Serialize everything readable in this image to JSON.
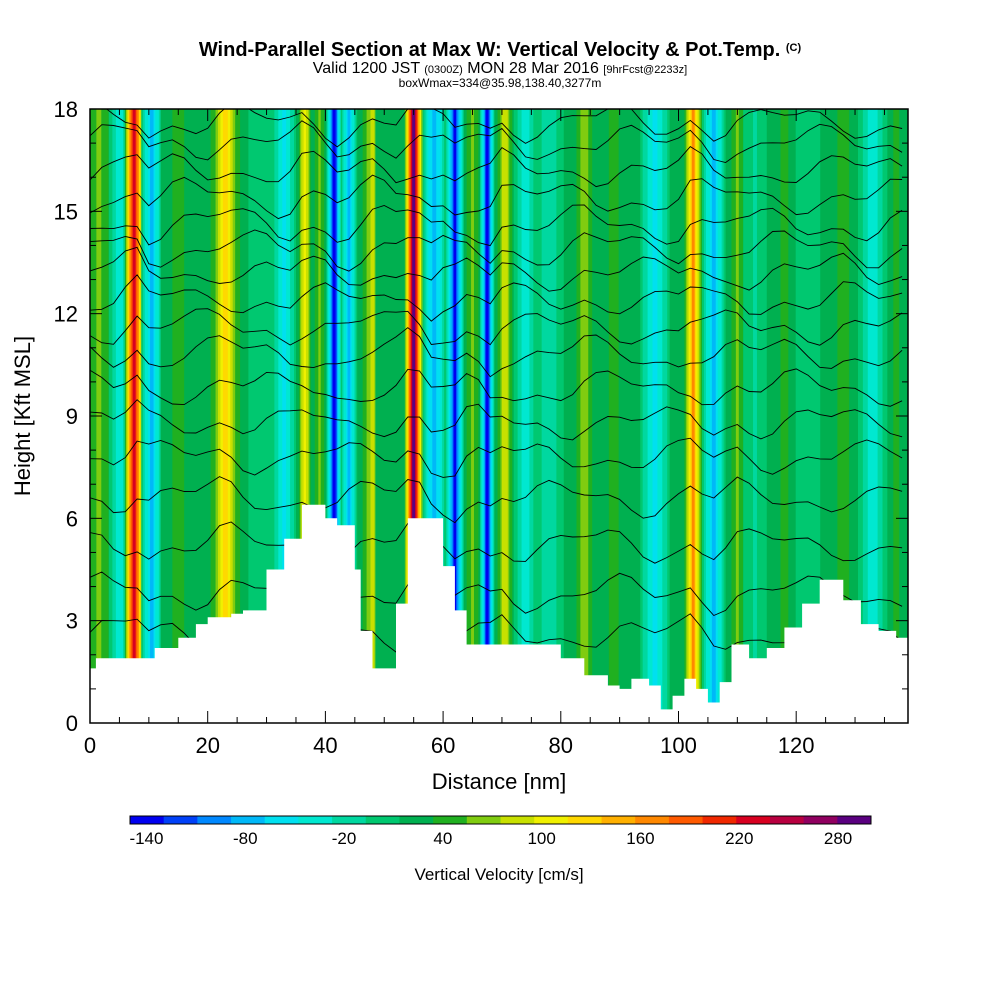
{
  "title": {
    "main": "Wind-Parallel Section at Max W: Vertical Velocity & Pot.Temp.",
    "copyright": "(C)",
    "valid_prefix": "Valid 1200 JST",
    "valid_utc": "(0300Z)",
    "valid_date": "MON 28 Mar 2016",
    "forecast": "[9hrFcst@2233z]",
    "boxmax": "boxWmax=334@35.98,138.40,3277m"
  },
  "chart_data": {
    "type": "heatmap",
    "title": "Wind-Parallel Section at Max W: Vertical Velocity & Pot.Temp.",
    "xlabel": "Distance [nm]",
    "ylabel": "Height [Kft MSL]",
    "xlim": [
      0,
      139
    ],
    "ylim": [
      0,
      18
    ],
    "x_ticks": [
      0,
      20,
      40,
      60,
      80,
      100,
      120
    ],
    "y_ticks": [
      0,
      3,
      6,
      9,
      12,
      15,
      18
    ],
    "colorbar": {
      "label": "Vertical Velocity [cm/s]",
      "tick_labels": [
        "-140",
        "-80",
        "-20",
        "40",
        "100",
        "160",
        "220",
        "280"
      ],
      "tick_values": [
        -140,
        -80,
        -20,
        40,
        100,
        160,
        220,
        280
      ],
      "min": -150,
      "max": 300,
      "colors": [
        "#0000f0",
        "#0040f8",
        "#0088ff",
        "#00b8f8",
        "#00e0f0",
        "#00e8d0",
        "#00d8a0",
        "#00c870",
        "#00b050",
        "#20b020",
        "#80cc10",
        "#c8e000",
        "#f0f000",
        "#ffd800",
        "#ffb000",
        "#ff8800",
        "#ff5a00",
        "#f02800",
        "#d80020",
        "#b80040",
        "#900060",
        "#5a0080"
      ]
    },
    "terrain": {
      "x": [
        0,
        1,
        10,
        11,
        15,
        18,
        20,
        24,
        26,
        30,
        33,
        36,
        38,
        40,
        42,
        45,
        46,
        48,
        52,
        54,
        57,
        60,
        62,
        64,
        66,
        70,
        74,
        78,
        80,
        84,
        88,
        90,
        92,
        95,
        97,
        99,
        101,
        103,
        105,
        107,
        109,
        112,
        115,
        118,
        121,
        124,
        126,
        128,
        131,
        134,
        137,
        139
      ],
      "height": [
        1.6,
        1.9,
        1.9,
        2.2,
        2.5,
        2.9,
        3.1,
        3.2,
        3.3,
        4.5,
        5.4,
        6.4,
        6.4,
        6.0,
        5.8,
        4.5,
        2.7,
        1.6,
        3.5,
        6.0,
        6.0,
        4.6,
        3.3,
        2.3,
        2.3,
        2.3,
        2.3,
        2.3,
        1.9,
        1.4,
        1.1,
        1.0,
        1.3,
        1.1,
        0.4,
        0.8,
        1.3,
        1.0,
        0.6,
        1.2,
        2.3,
        1.9,
        2.2,
        2.8,
        3.5,
        4.2,
        4.2,
        3.6,
        2.9,
        2.7,
        2.5,
        2.3
      ]
    },
    "vertical_velocity_columns": [
      {
        "x": 1.5,
        "w": 2.5,
        "v": 55
      },
      {
        "x": 5,
        "w": 1.8,
        "v": -45
      },
      {
        "x": 7.5,
        "w": 1.6,
        "v": 230
      },
      {
        "x": 10.5,
        "w": 1.8,
        "v": -70
      },
      {
        "x": 15,
        "w": 3,
        "v": 40
      },
      {
        "x": 23,
        "w": 2.5,
        "v": 130
      },
      {
        "x": 29,
        "w": 2.5,
        "v": 10
      },
      {
        "x": 33,
        "w": 2,
        "v": -60
      },
      {
        "x": 36.5,
        "w": 1.2,
        "v": 110
      },
      {
        "x": 39,
        "w": 1.2,
        "v": 60
      },
      {
        "x": 41.5,
        "w": 1.3,
        "v": -140
      },
      {
        "x": 44,
        "w": 1.4,
        "v": -70
      },
      {
        "x": 48,
        "w": 2,
        "v": 80
      },
      {
        "x": 50.5,
        "w": 2,
        "v": 30
      },
      {
        "x": 55,
        "w": 1.5,
        "v": 280
      },
      {
        "x": 58.5,
        "w": 2,
        "v": -80
      },
      {
        "x": 62,
        "w": 1.5,
        "v": -130
      },
      {
        "x": 65,
        "w": 1.5,
        "v": 60
      },
      {
        "x": 67.5,
        "w": 1.2,
        "v": -140
      },
      {
        "x": 70.5,
        "w": 1.5,
        "v": 90
      },
      {
        "x": 74,
        "w": 2,
        "v": -40
      },
      {
        "x": 78,
        "w": 2.5,
        "v": -20
      },
      {
        "x": 84,
        "w": 2,
        "v": 70
      },
      {
        "x": 89,
        "w": 2.5,
        "v": 40
      },
      {
        "x": 96,
        "w": 2.5,
        "v": -60
      },
      {
        "x": 102.5,
        "w": 1.5,
        "v": 160
      },
      {
        "x": 106,
        "w": 2,
        "v": -70
      },
      {
        "x": 110,
        "w": 1.5,
        "v": 60
      },
      {
        "x": 113,
        "w": 2,
        "v": -10
      },
      {
        "x": 118,
        "w": 2,
        "v": 40
      },
      {
        "x": 122,
        "w": 2.5,
        "v": 10
      },
      {
        "x": 128,
        "w": 2,
        "v": 50
      },
      {
        "x": 133,
        "w": 2.5,
        "v": -40
      },
      {
        "x": 137,
        "w": 1.5,
        "v": 40
      }
    ],
    "isentrope_heights": [
      2.6,
      3.8,
      5.2,
      6.6,
      7.8,
      8.8,
      9.8,
      10.8,
      11.6,
      12.4,
      13.2,
      13.9,
      14.6,
      15.4,
      16.2,
      17.0,
      17.6
    ]
  }
}
